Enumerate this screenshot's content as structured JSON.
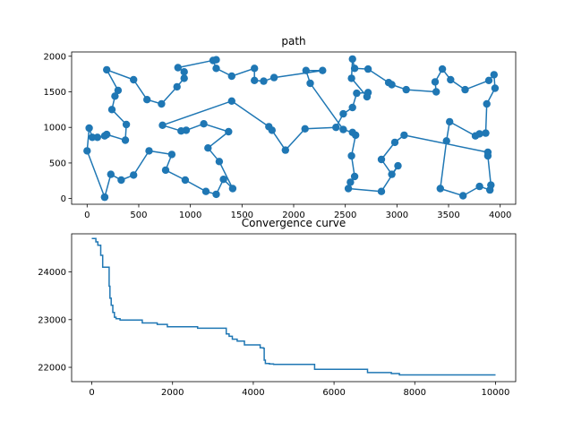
{
  "chart_data": [
    {
      "type": "scatter",
      "title": "path",
      "xlabel": "",
      "ylabel": "",
      "xlim": [
        -150,
        4150
      ],
      "ylim": [
        -80,
        2060
      ],
      "xticks": [
        0,
        500,
        1000,
        1500,
        2000,
        2500,
        3000,
        3500,
        4000
      ],
      "yticks": [
        0,
        500,
        1000,
        1500,
        2000
      ],
      "color": "#1f77b4",
      "path": [
        [
          170,
          20
        ],
        [
          230,
          340
        ],
        [
          330,
          260
        ],
        [
          450,
          330
        ],
        [
          600,
          670
        ],
        [
          820,
          620
        ],
        [
          760,
          400
        ],
        [
          950,
          260
        ],
        [
          1150,
          100
        ],
        [
          1250,
          60
        ],
        [
          1320,
          270
        ],
        [
          1410,
          140
        ],
        [
          1280,
          520
        ],
        [
          1170,
          710
        ],
        [
          1370,
          940
        ],
        [
          1130,
          1050
        ],
        [
          960,
          960
        ],
        [
          910,
          950
        ],
        [
          730,
          1030
        ],
        [
          1400,
          1370
        ],
        [
          1760,
          1010
        ],
        [
          1790,
          960
        ],
        [
          1920,
          680
        ],
        [
          2110,
          980
        ],
        [
          2410,
          1000
        ],
        [
          2480,
          1190
        ],
        [
          2570,
          1280
        ],
        [
          2610,
          1480
        ],
        [
          2720,
          1490
        ],
        [
          2710,
          1430
        ],
        [
          2560,
          1690
        ],
        [
          2570,
          1960
        ],
        [
          2590,
          1830
        ],
        [
          2720,
          1820
        ],
        [
          2920,
          1630
        ],
        [
          2950,
          1600
        ],
        [
          3090,
          1530
        ],
        [
          3380,
          1500
        ],
        [
          3370,
          1640
        ],
        [
          3440,
          1820
        ],
        [
          3520,
          1670
        ],
        [
          3660,
          1530
        ],
        [
          3890,
          1660
        ],
        [
          3940,
          1740
        ],
        [
          3950,
          1550
        ],
        [
          3870,
          1330
        ],
        [
          3860,
          920
        ],
        [
          3800,
          910
        ],
        [
          3760,
          880
        ],
        [
          3510,
          1080
        ],
        [
          3480,
          810
        ],
        [
          3420,
          140
        ],
        [
          3640,
          40
        ],
        [
          3800,
          170
        ],
        [
          3900,
          120
        ],
        [
          3910,
          190
        ],
        [
          3880,
          600
        ],
        [
          3880,
          650
        ],
        [
          3070,
          890
        ],
        [
          2980,
          790
        ],
        [
          2850,
          550
        ],
        [
          2950,
          340
        ],
        [
          3010,
          460
        ],
        [
          2850,
          100
        ],
        [
          2530,
          140
        ],
        [
          2550,
          230
        ],
        [
          2590,
          310
        ],
        [
          2560,
          600
        ],
        [
          2600,
          890
        ],
        [
          2570,
          930
        ],
        [
          2480,
          970
        ],
        [
          2160,
          1620
        ],
        [
          2120,
          1800
        ],
        [
          2280,
          1800
        ],
        [
          1810,
          1700
        ],
        [
          1710,
          1650
        ],
        [
          1620,
          1660
        ],
        [
          1620,
          1830
        ],
        [
          1400,
          1720
        ],
        [
          1250,
          1830
        ],
        [
          1220,
          1940
        ],
        [
          1250,
          1950
        ],
        [
          880,
          1840
        ],
        [
          940,
          1780
        ],
        [
          940,
          1690
        ],
        [
          870,
          1570
        ],
        [
          720,
          1330
        ],
        [
          580,
          1390
        ],
        [
          450,
          1670
        ],
        [
          190,
          1810
        ],
        [
          300,
          1520
        ],
        [
          270,
          1440
        ],
        [
          240,
          1250
        ],
        [
          380,
          1040
        ],
        [
          370,
          820
        ],
        [
          190,
          900
        ],
        [
          170,
          880
        ],
        [
          100,
          860
        ],
        [
          50,
          860
        ],
        [
          20,
          990
        ],
        [
          0,
          670
        ],
        [
          170,
          20
        ]
      ]
    },
    {
      "type": "line",
      "title": "Convergence curve",
      "xlabel": "",
      "ylabel": "",
      "xlim": [
        -500,
        10500
      ],
      "ylim": [
        21700,
        24800
      ],
      "xticks": [
        0,
        2000,
        4000,
        6000,
        8000,
        10000
      ],
      "yticks": [
        22000,
        23000,
        24000
      ],
      "color": "#1f77b4",
      "steps": [
        [
          0,
          24700
        ],
        [
          80,
          24700
        ],
        [
          100,
          24630
        ],
        [
          150,
          24560
        ],
        [
          220,
          24350
        ],
        [
          270,
          24100
        ],
        [
          400,
          24100
        ],
        [
          430,
          23700
        ],
        [
          450,
          23450
        ],
        [
          480,
          23300
        ],
        [
          520,
          23150
        ],
        [
          560,
          23050
        ],
        [
          600,
          23020
        ],
        [
          700,
          22990
        ],
        [
          1200,
          22990
        ],
        [
          1250,
          22930
        ],
        [
          1600,
          22930
        ],
        [
          1620,
          22900
        ],
        [
          1850,
          22900
        ],
        [
          1870,
          22850
        ],
        [
          2600,
          22850
        ],
        [
          2620,
          22820
        ],
        [
          3300,
          22820
        ],
        [
          3330,
          22700
        ],
        [
          3400,
          22650
        ],
        [
          3480,
          22590
        ],
        [
          3600,
          22550
        ],
        [
          3750,
          22550
        ],
        [
          3780,
          22470
        ],
        [
          4150,
          22470
        ],
        [
          4170,
          22410
        ],
        [
          4250,
          22400
        ],
        [
          4270,
          22150
        ],
        [
          4300,
          22080
        ],
        [
          4400,
          22070
        ],
        [
          4500,
          22060
        ],
        [
          5500,
          22060
        ],
        [
          5520,
          21960
        ],
        [
          6800,
          21960
        ],
        [
          6830,
          21890
        ],
        [
          7400,
          21890
        ],
        [
          7420,
          21870
        ],
        [
          7600,
          21870
        ],
        [
          7620,
          21840
        ],
        [
          10000,
          21840
        ]
      ]
    }
  ]
}
